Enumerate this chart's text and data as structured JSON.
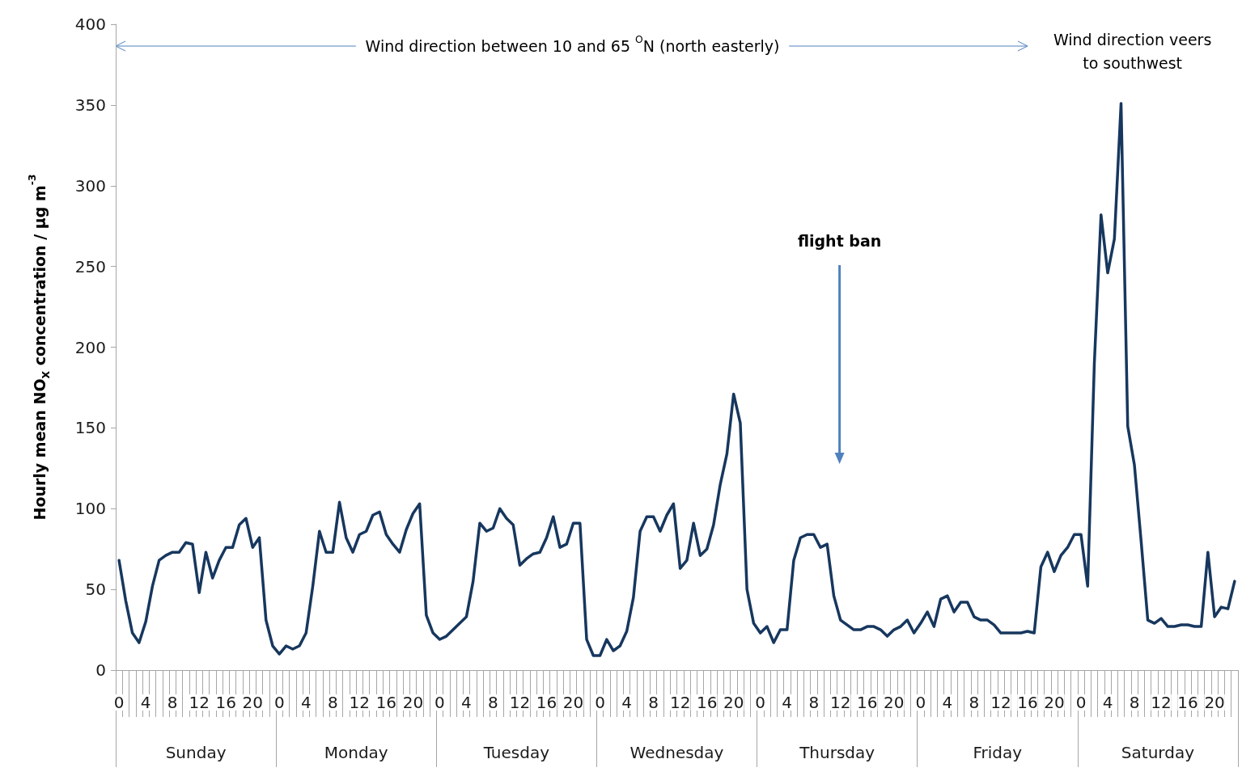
{
  "chart_data": {
    "type": "line",
    "ylabel": "Hourly mean NO$_{X}$ concentration / µg m$^{-3}$",
    "categories": [
      "0",
      null,
      null,
      null,
      "4",
      null,
      null,
      null,
      "8",
      null,
      null,
      null,
      "12",
      null,
      null,
      null,
      "16",
      null,
      null,
      null,
      "20",
      null,
      null,
      null,
      "0",
      null,
      null,
      null,
      "4",
      null,
      null,
      null,
      "8",
      null,
      null,
      null,
      "12",
      null,
      null,
      null,
      "16",
      null,
      null,
      null,
      "20",
      null,
      null,
      null,
      "0",
      null,
      null,
      null,
      "4",
      null,
      null,
      null,
      "8",
      null,
      null,
      null,
      "12",
      null,
      null,
      null,
      "16",
      null,
      null,
      null,
      "20",
      null,
      null,
      null,
      "0",
      null,
      null,
      null,
      "4",
      null,
      null,
      null,
      "8",
      null,
      null,
      null,
      "12",
      null,
      null,
      null,
      "16",
      null,
      null,
      null,
      "20",
      null,
      null,
      null,
      "0",
      null,
      null,
      null,
      "4",
      null,
      null,
      null,
      "8",
      null,
      null,
      null,
      "12",
      null,
      null,
      null,
      "16",
      null,
      null,
      null,
      "20",
      null,
      null,
      null,
      "0",
      null,
      null,
      null,
      "4",
      null,
      null,
      null,
      "8",
      null,
      null,
      null,
      "12",
      null,
      null,
      null,
      "16",
      null,
      null,
      null,
      "20",
      null,
      null,
      null,
      "0",
      null,
      null,
      null,
      "4",
      null,
      null,
      null,
      "8",
      null,
      null,
      null,
      "12",
      null,
      null,
      null,
      "16",
      null,
      null,
      null,
      "20",
      null,
      null,
      null
    ],
    "series": [
      {
        "color": "#17375e",
        "values": [
          68,
          43,
          23,
          17,
          30,
          52,
          68,
          71,
          73,
          73,
          79,
          78,
          48,
          73,
          57,
          68,
          76,
          76,
          90,
          94,
          76,
          82,
          31,
          15,
          10,
          15,
          13,
          15,
          23,
          52,
          86,
          73,
          73,
          104,
          82,
          73,
          84,
          86,
          96,
          98,
          84,
          78,
          73,
          87,
          97,
          103,
          34,
          23,
          19,
          21,
          25,
          29,
          33,
          55,
          91,
          86,
          88,
          100,
          94,
          90,
          65,
          69,
          72,
          73,
          82,
          95,
          76,
          78,
          91,
          91,
          19,
          9,
          9,
          19,
          12,
          15,
          24,
          45,
          86,
          95,
          95,
          86,
          96,
          103,
          63,
          68,
          91,
          71,
          75,
          90,
          115,
          134,
          171,
          153,
          50,
          29,
          23,
          27,
          17,
          25,
          25,
          68,
          82,
          84,
          84,
          76,
          78,
          46,
          31,
          28,
          25,
          25,
          27,
          27,
          25,
          21,
          25,
          27,
          31,
          23,
          29,
          36,
          27,
          44,
          46,
          36,
          42,
          42,
          33,
          31,
          31,
          28,
          23,
          23,
          23,
          23,
          24,
          23,
          64,
          73,
          61,
          71,
          76,
          84,
          84,
          52,
          190,
          282,
          246,
          267,
          351,
          151,
          127,
          80,
          31,
          29,
          32,
          27,
          27,
          28,
          28,
          27,
          27,
          73,
          33,
          39,
          38,
          55
        ]
      }
    ],
    "ylim": [
      0,
      400
    ],
    "yticks": [
      0,
      50,
      100,
      150,
      200,
      250,
      300,
      350,
      400
    ],
    "line_style": "solid",
    "annotations": [
      "Wind direction between 10 and 65 $^{O}$N (north easterly)",
      "Wind direction veers\nto southwest",
      "flight ban",
      "Sunday",
      "Monday",
      "Tuesday",
      "Wednesday",
      "Thursday",
      "Friday",
      "Saturday"
    ]
  }
}
